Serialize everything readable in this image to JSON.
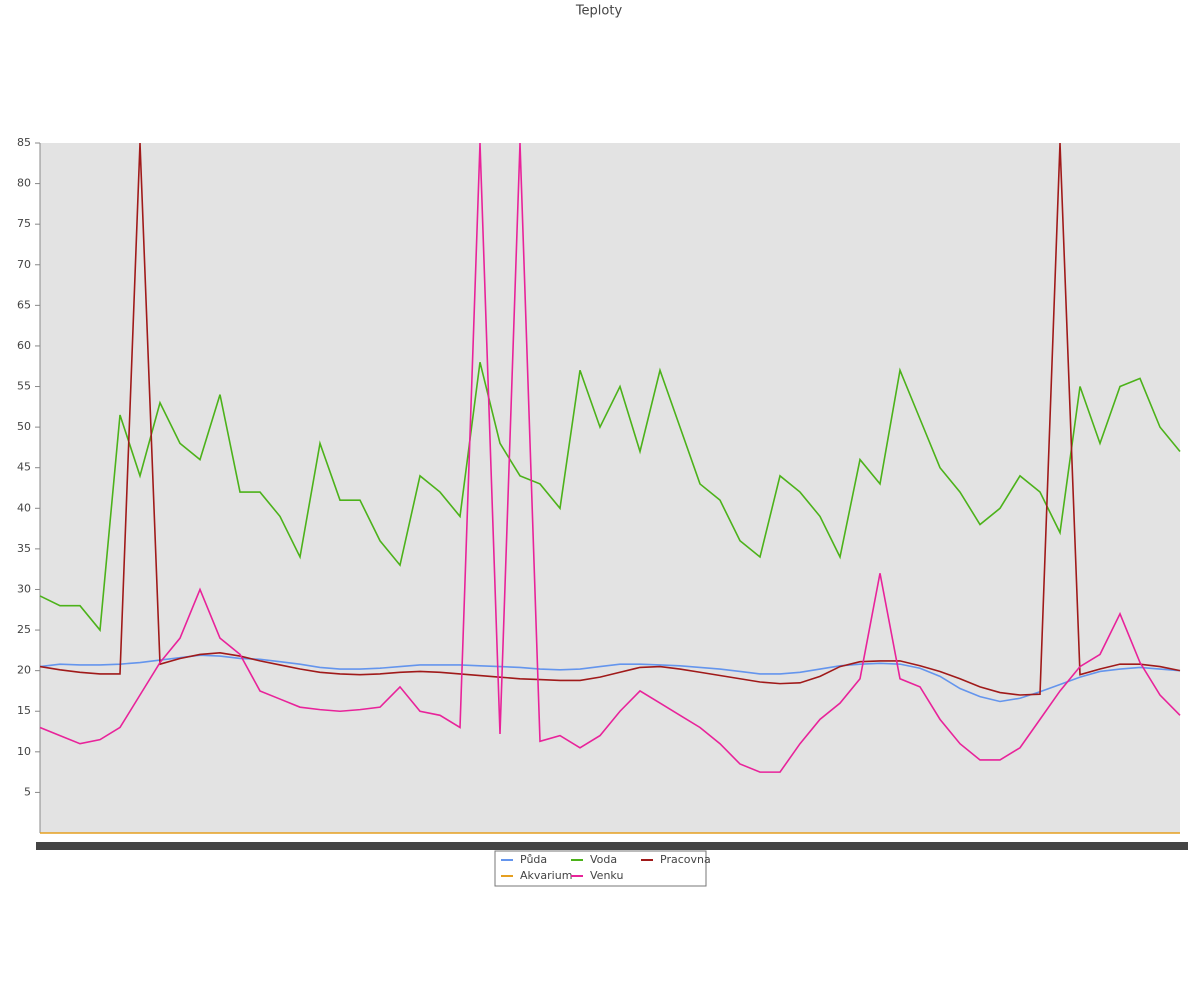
{
  "chart_data": {
    "type": "line",
    "title": "Teploty",
    "categories": [
      null,
      null,
      null,
      null,
      null,
      null,
      null,
      null,
      null,
      null,
      null,
      null,
      null,
      null,
      null,
      null,
      null,
      null,
      null,
      null,
      null,
      null,
      null,
      null,
      null,
      null,
      null,
      null,
      null,
      null,
      null,
      null,
      null,
      null,
      null,
      null,
      null,
      null,
      null,
      null,
      null,
      null,
      null,
      null,
      null,
      null,
      null,
      null,
      null,
      null,
      null,
      null,
      null,
      null,
      null,
      null,
      null,
      null
    ],
    "series": [
      {
        "name": "Půda",
        "color": "#6495ed",
        "values": [
          20.5,
          20.8,
          20.7,
          20.7,
          20.8,
          21,
          21.3,
          21.6,
          21.9,
          21.8,
          21.5,
          21.4,
          21.1,
          20.8,
          20.4,
          20.2,
          20.2,
          20.3,
          20.5,
          20.7,
          20.7,
          20.7,
          20.6,
          20.5,
          20.4,
          20.2,
          20.1,
          20.2,
          20.5,
          20.8,
          20.8,
          20.7,
          20.6,
          20.4,
          20.2,
          19.9,
          19.6,
          19.6,
          19.8,
          20.2,
          20.6,
          20.8,
          20.9,
          20.8,
          20.3,
          19.3,
          17.8,
          16.8,
          16.2,
          16.6,
          17.4,
          18.3,
          19.2,
          19.9,
          20.2,
          20.4,
          20.2,
          20.0
        ]
      },
      {
        "name": "Voda",
        "color": "#4cb21a",
        "values": [
          29.2,
          28,
          28,
          25,
          51.5,
          44,
          53,
          48,
          46,
          54,
          42,
          42,
          39,
          34,
          48,
          41,
          41,
          36,
          33,
          44,
          42,
          39,
          58,
          48,
          44,
          43,
          40,
          57,
          50,
          55,
          47,
          57,
          50,
          43,
          41,
          36,
          34,
          44,
          42,
          39,
          34,
          46,
          43,
          57,
          51,
          45,
          42,
          38,
          40,
          44,
          42,
          37,
          55,
          48,
          55,
          56,
          50,
          47
        ]
      },
      {
        "name": "Pracovna",
        "color": "#a01a1a",
        "values": [
          20.5,
          20.1,
          19.8,
          19.6,
          19.6,
          85,
          20.8,
          21.5,
          22.0,
          22.2,
          21.8,
          21.2,
          20.7,
          20.2,
          19.8,
          19.6,
          19.5,
          19.6,
          19.8,
          19.9,
          19.8,
          19.6,
          19.4,
          19.2,
          19.0,
          18.9,
          18.8,
          18.8,
          19.2,
          19.8,
          20.4,
          20.5,
          20.2,
          19.8,
          19.4,
          19.0,
          18.6,
          18.4,
          18.5,
          19.3,
          20.5,
          21.1,
          21.2,
          21.2,
          20.6,
          19.9,
          19.0,
          18.0,
          17.3,
          17.0,
          17.1,
          85,
          19.5,
          20.2,
          20.8,
          20.8,
          20.5,
          20.0
        ]
      },
      {
        "name": "Akvarium",
        "color": "#e6a020",
        "values": [
          0,
          0,
          0,
          0,
          0,
          0,
          0,
          0,
          0,
          0,
          0,
          0,
          0,
          0,
          0,
          0,
          0,
          0,
          0,
          0,
          0,
          0,
          0,
          0,
          0,
          0,
          0,
          0,
          0,
          0,
          0,
          0,
          0,
          0,
          0,
          0,
          0,
          0,
          0,
          0,
          0,
          0,
          0,
          0,
          0,
          0,
          0,
          0,
          0,
          0,
          0,
          0,
          0,
          0,
          0,
          0,
          0,
          0
        ]
      },
      {
        "name": "Venku",
        "color": "#e8239a",
        "values": [
          13,
          12,
          11,
          11.5,
          13,
          17,
          21,
          24,
          30,
          24,
          22,
          17.5,
          16.5,
          15.5,
          15.2,
          15,
          15.2,
          15.5,
          18,
          15,
          14.5,
          13,
          85,
          12.2,
          85,
          11.3,
          12,
          10.5,
          12,
          15,
          17.5,
          16,
          14.5,
          13,
          11,
          8.5,
          7.5,
          7.5,
          11,
          14,
          16,
          19,
          32,
          19,
          18,
          14,
          11,
          9,
          9,
          10.5,
          14,
          17.5,
          20.5,
          22,
          27,
          21,
          17,
          14.5
        ]
      }
    ],
    "ylim": [
      0,
      85
    ],
    "yticks": [
      5,
      10,
      15,
      20,
      25,
      30,
      35,
      40,
      45,
      50,
      55,
      60,
      65,
      70,
      75,
      80,
      85
    ]
  }
}
